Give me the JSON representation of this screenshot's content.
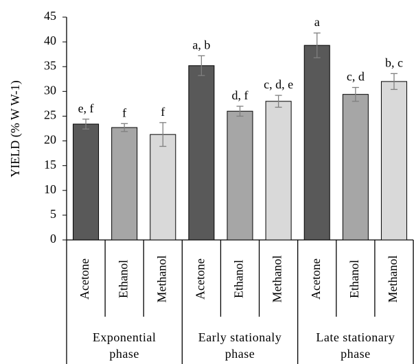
{
  "chart_data": {
    "type": "bar",
    "y_label": "YIELD (% W W-1)",
    "ylim": [
      0,
      45
    ],
    "yticks": [
      0,
      5,
      10,
      15,
      20,
      25,
      30,
      35,
      40,
      45
    ],
    "colors": [
      "#595959",
      "#a6a6a6",
      "#d9d9d9"
    ],
    "groups": [
      {
        "name": "Exponential phase",
        "categories": [
          "Acetone",
          "Ethanol",
          "Methanol"
        ],
        "values": [
          23.4,
          22.7,
          21.3
        ],
        "errors": [
          1.0,
          0.8,
          2.4
        ],
        "letters": [
          "e, f",
          "f",
          "f"
        ]
      },
      {
        "name": "Early stationaly phase",
        "categories": [
          "Acetone",
          "Ethanol",
          "Methanol"
        ],
        "values": [
          35.2,
          26.0,
          28.0
        ],
        "errors": [
          2.0,
          1.0,
          1.2
        ],
        "letters": [
          "a, b",
          "d, f",
          "c, d, e"
        ]
      },
      {
        "name": "Late stationary phase",
        "categories": [
          "Acetone",
          "Ethanol",
          "Methanol"
        ],
        "values": [
          39.3,
          29.4,
          32.0
        ],
        "errors": [
          2.5,
          1.4,
          1.6
        ],
        "letters": [
          "a",
          "c, d",
          "b, c"
        ]
      }
    ]
  }
}
